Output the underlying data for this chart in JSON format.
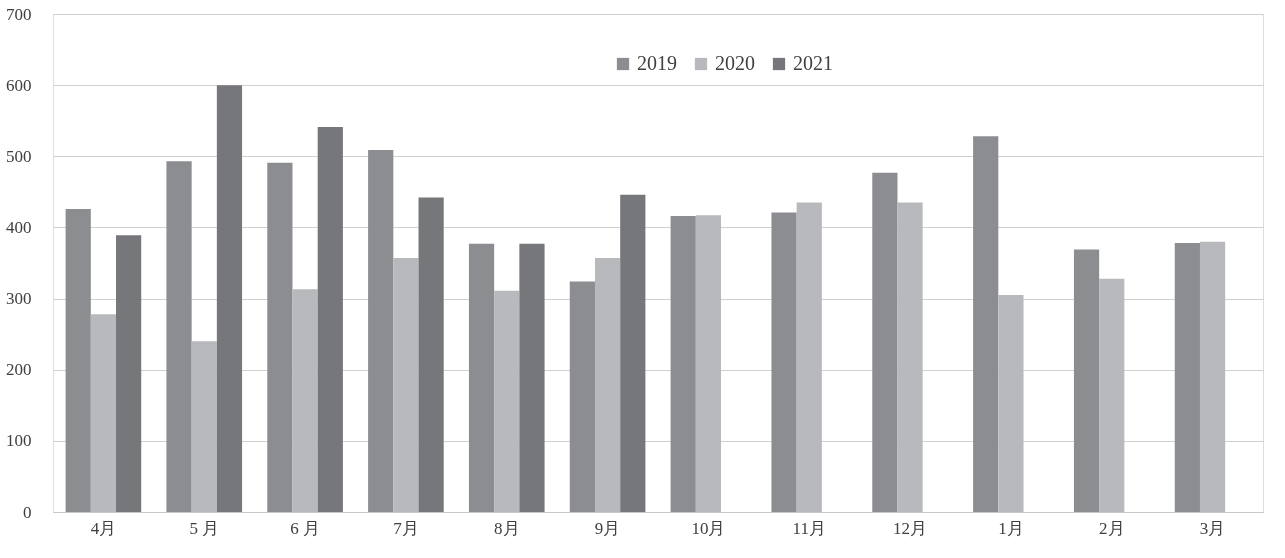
{
  "chart_data": {
    "type": "bar",
    "categories": [
      "4月",
      "5 月",
      "6 月",
      "7月",
      "8月",
      "9月",
      "10月",
      "11月",
      "12月",
      "1月",
      "2月",
      "3月"
    ],
    "series": [
      {
        "name": "2019",
        "color": "#8c8d91",
        "values": [
          426,
          493,
          491,
          509,
          377,
          324,
          416,
          421,
          477,
          528,
          369,
          378
        ]
      },
      {
        "name": "2020",
        "color": "#b8b9bc",
        "values": [
          278,
          240,
          313,
          357,
          311,
          357,
          417,
          435,
          435,
          305,
          328,
          380
        ]
      },
      {
        "name": "2021",
        "color": "#76777b",
        "values": [
          389,
          600,
          541,
          442,
          377,
          446,
          null,
          null,
          null,
          null,
          null,
          null
        ]
      }
    ],
    "ylim": [
      0,
      700
    ],
    "yticks": [
      0,
      100,
      200,
      300,
      400,
      500,
      600,
      700
    ],
    "grid": "y",
    "legend": "top"
  }
}
